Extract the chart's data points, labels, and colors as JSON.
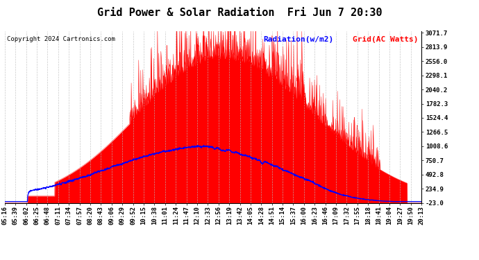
{
  "title": "Grid Power & Solar Radiation  Fri Jun 7 20:30",
  "copyright": "Copyright 2024 Cartronics.com",
  "legend_radiation": "Radiation(w/m2)",
  "legend_grid": "Grid(AC Watts)",
  "legend_radiation_color": "#0000ff",
  "legend_grid_color": "#ff0000",
  "fill_color": "#ff0000",
  "line_color_radiation": "#0000ff",
  "line_color_grid": "#ff0000",
  "background_color": "#ffffff",
  "grid_color": "#aaaaaa",
  "ylabel_right_values": [
    3071.7,
    2813.9,
    2556.0,
    2298.1,
    2040.2,
    1782.3,
    1524.4,
    1266.5,
    1008.6,
    750.7,
    492.8,
    234.9,
    -23.0
  ],
  "ymin": -23.0,
  "ymax": 3071.7,
  "x_tick_labels": [
    "05:16",
    "05:39",
    "06:02",
    "06:25",
    "06:48",
    "07:11",
    "07:34",
    "07:57",
    "08:20",
    "08:43",
    "09:06",
    "09:29",
    "09:52",
    "10:15",
    "10:38",
    "11:01",
    "11:24",
    "11:47",
    "12:10",
    "12:33",
    "12:56",
    "13:19",
    "13:42",
    "14:05",
    "14:28",
    "14:51",
    "15:14",
    "15:37",
    "16:00",
    "16:23",
    "16:46",
    "17:09",
    "17:32",
    "17:55",
    "18:18",
    "18:41",
    "19:04",
    "19:27",
    "19:50",
    "20:13"
  ],
  "title_fontsize": 11,
  "tick_fontsize": 6.5,
  "copyright_fontsize": 6.5,
  "legend_fontsize": 8
}
